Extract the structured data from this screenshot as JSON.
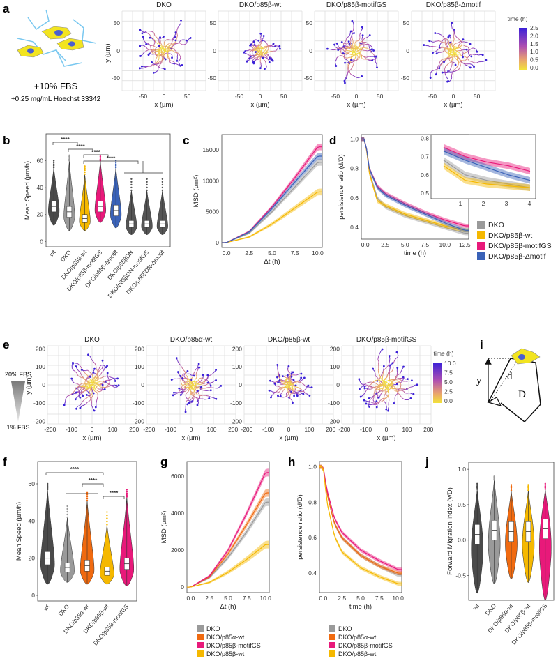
{
  "panels": {
    "a": {
      "label": "a",
      "caption_main": "+10% FBS",
      "caption_sub": "+0.25 mg/mL Hoechst 33342",
      "plot_titles": [
        "DKO",
        "DKO/p85β-wt",
        "DKO/p85β-motifGS",
        "DKO/p85β-Δmotif"
      ],
      "xlabel": "x (µm)",
      "ylabel": "y (µm)",
      "xticks": [
        "-50",
        "0",
        "50"
      ],
      "yticks": [
        "50",
        "0",
        "-50"
      ],
      "colorbar": {
        "title": "time (h)",
        "ticks": [
          "2.5",
          "2.0",
          "1.5",
          "1.0",
          "0.5",
          "0.0"
        ]
      }
    },
    "b": {
      "label": "b",
      "ylabel": "Mean Speed (µm/h)",
      "yticks": [
        "60",
        "40",
        "20",
        "0"
      ],
      "significance": [
        "****",
        "****",
        "****",
        "****"
      ],
      "groups": [
        "wt",
        "DKO",
        "DKO/p85β-wt",
        "DKO/p85β-motifGS",
        "DKO/p85β-Δmotif",
        "DKO/p85βDN",
        "DKO/p85βDN-motifGS",
        "DKO/p85βDN-Δmotif"
      ]
    },
    "c": {
      "label": "c",
      "ylabel": "MSD (µm²)",
      "xlabel": "Δt (h)",
      "yticks": [
        "15000",
        "10000",
        "5000",
        "0"
      ],
      "xticks": [
        "0.0",
        "2.5",
        "5.0",
        "7.5",
        "10.0"
      ]
    },
    "d": {
      "label": "d",
      "ylabel": "persistence ratio (d/D)",
      "xlabel": "time (h)",
      "yticks": [
        "1.0",
        "0.8",
        "0.6",
        "0.4"
      ],
      "xticks": [
        "0.0",
        "2.5",
        "5.0",
        "7.5",
        "10.0",
        "12.5"
      ],
      "inset_yticks": [
        "0.8",
        "0.7",
        "0.6",
        "0.5"
      ],
      "inset_xticks": [
        "1",
        "2",
        "3",
        "4"
      ],
      "legend": [
        "DKO",
        "DKO/p85β-wt",
        "DKO/p85β-motifGS",
        "DKO/p85β-Δmotif"
      ]
    },
    "e": {
      "label": "e",
      "gradient_top": "20% FBS",
      "gradient_bottom": "1% FBS",
      "plot_titles": [
        "DKO",
        "DKO/p85α-wt",
        "DKO/p85β-wt",
        "DKO/p85β-motifGS"
      ],
      "xlabel": "x (µm)",
      "ylabel": "y (µm)",
      "xticks": [
        "-200",
        "-100",
        "0",
        "100",
        "200"
      ],
      "yticks": [
        "200",
        "100",
        "0",
        "-100",
        "-200"
      ],
      "colorbar": {
        "title": "time (h)",
        "ticks": [
          "10.0",
          "7.5",
          "5.0",
          "2.5",
          "0.0"
        ]
      }
    },
    "f": {
      "label": "f",
      "ylabel": "Mean Speed (µm/h)",
      "yticks": [
        "60",
        "40",
        "20",
        "0"
      ],
      "significance": [
        "****",
        "****",
        "****"
      ],
      "groups": [
        "wt",
        "DKO",
        "DKO/p85α-wt",
        "DKO/p85β-wt",
        "DKO/p85β-motifGS"
      ]
    },
    "g": {
      "label": "g",
      "ylabel": "MSD (µm²)",
      "xlabel": "Δt (h)",
      "yticks": [
        "6000",
        "4000",
        "2000",
        "0"
      ],
      "xticks": [
        "0.0",
        "2.5",
        "5.0",
        "7.5",
        "10.0"
      ],
      "legend": [
        "DKO",
        "DKO/p85α-wt",
        "DKO/p85β-motifGS",
        "DKO/p85β-wt"
      ]
    },
    "h": {
      "label": "h",
      "ylabel": "persistence ratio (d/D)",
      "xlabel": "time (h)",
      "yticks": [
        "1.0",
        "0.8",
        "0.6",
        "0.4"
      ],
      "xticks": [
        "0.0",
        "2.5",
        "5.0",
        "7.5",
        "10.0"
      ],
      "legend": [
        "DKO",
        "DKO/p85α-wt",
        "DKO/p85β-motifGS",
        "DKO/p85β-wt"
      ]
    },
    "i": {
      "label": "i",
      "labels": [
        "y",
        "d",
        "D"
      ]
    },
    "j": {
      "label": "j",
      "ylabel": "Forward Migration Index (y/D)",
      "yticks": [
        "1.0",
        "0.5",
        "0.0",
        "-0.5"
      ],
      "groups": [
        "wt",
        "DKO",
        "DKO/p85α-wt",
        "DKO/p85β-wt",
        "DKO/p85β-motifGS"
      ]
    }
  },
  "colors": {
    "wt": "#4a4a4a",
    "DKO": "#9a9a9a",
    "p85b_wt": "#f5b800",
    "motifGS": "#e8197a",
    "dmotif": "#3a62b8",
    "p85bDN": "#555555",
    "p85a_wt": "#f06a10",
    "track_hi": "#3a20d8",
    "track_lo": "#f2e23a"
  },
  "chart_data": [
    {
      "type": "line",
      "panel": "c",
      "x_range": [
        0,
        10
      ],
      "ylim": [
        0,
        17000
      ],
      "series": [
        {
          "name": "DKO",
          "x": [
            0,
            2.5,
            5,
            7.5,
            10
          ],
          "values": [
            0,
            1500,
            5000,
            9000,
            13000
          ]
        },
        {
          "name": "DKO/p85β-wt",
          "x": [
            0,
            2.5,
            5,
            7.5,
            10
          ],
          "values": [
            0,
            900,
            3000,
            5600,
            8200
          ]
        },
        {
          "name": "DKO/p85β-motifGS",
          "x": [
            0,
            2.5,
            5,
            7.5,
            10
          ],
          "values": [
            0,
            1800,
            5800,
            10500,
            15500
          ]
        },
        {
          "name": "DKO/p85β-Δmotif",
          "x": [
            0,
            2.5,
            5,
            7.5,
            10
          ],
          "values": [
            0,
            1700,
            5500,
            9800,
            14000
          ]
        }
      ]
    },
    {
      "type": "line",
      "panel": "d",
      "x_range": [
        0,
        12.5
      ],
      "ylim": [
        0.35,
        1.0
      ],
      "series": [
        {
          "name": "DKO",
          "x": [
            0,
            0.5,
            1.5,
            2.5,
            5,
            7.5,
            10,
            12.5
          ],
          "values": [
            1.0,
            0.78,
            0.6,
            0.54,
            0.48,
            0.44,
            0.4,
            0.36
          ]
        },
        {
          "name": "DKO/p85β-wt",
          "x": [
            0,
            0.5,
            1.5,
            2.5,
            5,
            7.5,
            10,
            12.5
          ],
          "values": [
            1.0,
            0.77,
            0.58,
            0.55,
            0.49,
            0.45,
            0.41,
            0.38
          ]
        },
        {
          "name": "DKO/p85β-motifGS",
          "x": [
            0,
            0.5,
            1.5,
            2.5,
            5,
            7.5,
            10,
            12.5
          ],
          "values": [
            1.0,
            0.8,
            0.68,
            0.63,
            0.56,
            0.5,
            0.45,
            0.41
          ]
        },
        {
          "name": "DKO/p85β-Δmotif",
          "x": [
            0,
            0.5,
            1.5,
            2.5,
            5,
            7.5,
            10,
            12.5
          ],
          "values": [
            1.0,
            0.8,
            0.67,
            0.62,
            0.55,
            0.49,
            0.43,
            0.38
          ]
        }
      ]
    },
    {
      "type": "line",
      "panel": "g",
      "x_range": [
        0,
        10
      ],
      "ylim": [
        0,
        6500
      ],
      "series": [
        {
          "name": "DKO",
          "x": [
            0,
            2.5,
            5,
            7.5,
            10
          ],
          "values": [
            0,
            500,
            1600,
            3000,
            4600
          ]
        },
        {
          "name": "DKO/p85α-wt",
          "x": [
            0,
            2.5,
            5,
            7.5,
            10
          ],
          "values": [
            0,
            550,
            1800,
            3400,
            5100
          ]
        },
        {
          "name": "DKO/p85β-motifGS",
          "x": [
            0,
            2.5,
            5,
            7.5,
            10
          ],
          "values": [
            0,
            600,
            2000,
            4000,
            6200
          ]
        },
        {
          "name": "DKO/p85β-wt",
          "x": [
            0,
            2.5,
            5,
            7.5,
            10
          ],
          "values": [
            0,
            250,
            800,
            1500,
            2300
          ]
        }
      ]
    },
    {
      "type": "line",
      "panel": "h",
      "x_range": [
        0,
        10
      ],
      "ylim": [
        0.3,
        1.0
      ],
      "series": [
        {
          "name": "DKO",
          "x": [
            0,
            0.5,
            1.5,
            2.5,
            5,
            7.5,
            10
          ],
          "values": [
            1.0,
            0.85,
            0.68,
            0.6,
            0.5,
            0.44,
            0.39
          ]
        },
        {
          "name": "DKO/p85α-wt",
          "x": [
            0,
            0.5,
            1.5,
            2.5,
            5,
            7.5,
            10
          ],
          "values": [
            1.0,
            0.85,
            0.68,
            0.6,
            0.5,
            0.44,
            0.4
          ]
        },
        {
          "name": "DKO/p85β-motifGS",
          "x": [
            0,
            0.5,
            1.5,
            2.5,
            5,
            7.5,
            10
          ],
          "values": [
            1.0,
            0.87,
            0.71,
            0.63,
            0.53,
            0.47,
            0.42
          ]
        },
        {
          "name": "DKO/p85β-wt",
          "x": [
            0,
            0.5,
            1.5,
            2.5,
            5,
            7.5,
            10
          ],
          "values": [
            1.0,
            0.8,
            0.61,
            0.52,
            0.43,
            0.38,
            0.34
          ]
        }
      ]
    }
  ]
}
